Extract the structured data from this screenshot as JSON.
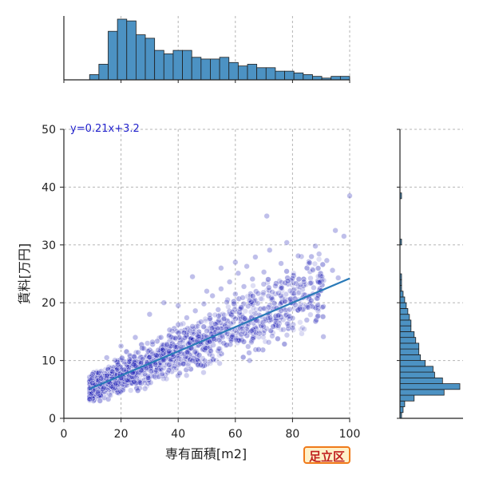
{
  "chart_data": {
    "type": "scatter",
    "title": "",
    "xlabel": "専有面積[m2]",
    "ylabel": "賃料[万円]",
    "xlim": [
      0,
      100
    ],
    "ylim": [
      0,
      50
    ],
    "xticks": [
      0,
      20,
      40,
      60,
      80,
      100
    ],
    "yticks": [
      0,
      10,
      20,
      30,
      40,
      50
    ],
    "grid": true,
    "grid_style": "dashed",
    "point_color": "#1a1ab4",
    "line_color": "#2a7ab8",
    "hist_color": "#4c92c3",
    "regression": {
      "label": "y=0.21x+3.2",
      "slope": 0.21,
      "intercept": 3.2,
      "x_range": [
        9,
        100
      ]
    },
    "scatter_points": [
      [
        9,
        5.2
      ],
      [
        10,
        6.1
      ],
      [
        11,
        5.8
      ],
      [
        12,
        4.6
      ],
      [
        13,
        6.9
      ],
      [
        14,
        5.3
      ],
      [
        15,
        7.4
      ],
      [
        16,
        6.2
      ],
      [
        17,
        8.1
      ],
      [
        18,
        5.9
      ],
      [
        19,
        9.3
      ],
      [
        20,
        7.0
      ],
      [
        21,
        8.4
      ],
      [
        22,
        6.6
      ],
      [
        23,
        10.2
      ],
      [
        24,
        7.9
      ],
      [
        25,
        9.1
      ],
      [
        26,
        11.4
      ],
      [
        27,
        8.3
      ],
      [
        28,
        12.1
      ],
      [
        29,
        9.7
      ],
      [
        30,
        10.6
      ],
      [
        31,
        13.2
      ],
      [
        32,
        9.4
      ],
      [
        33,
        11.8
      ],
      [
        34,
        14.0
      ],
      [
        35,
        10.1
      ],
      [
        36,
        12.7
      ],
      [
        37,
        15.3
      ],
      [
        38,
        11.0
      ],
      [
        39,
        13.9
      ],
      [
        40,
        16.2
      ],
      [
        41,
        12.3
      ],
      [
        42,
        14.8
      ],
      [
        43,
        17.4
      ],
      [
        44,
        13.1
      ],
      [
        45,
        15.9
      ],
      [
        46,
        18.6
      ],
      [
        47,
        14.2
      ],
      [
        48,
        16.7
      ],
      [
        49,
        19.8
      ],
      [
        50,
        15.1
      ],
      [
        51,
        17.9
      ],
      [
        52,
        21.2
      ],
      [
        53,
        16.3
      ],
      [
        54,
        18.8
      ],
      [
        55,
        22.4
      ],
      [
        56,
        17.2
      ],
      [
        57,
        20.1
      ],
      [
        58,
        23.6
      ],
      [
        59,
        18.4
      ],
      [
        60,
        21.5
      ],
      [
        61,
        25.1
      ],
      [
        62,
        19.2
      ],
      [
        63,
        22.8
      ],
      [
        64,
        26.3
      ],
      [
        65,
        20.4
      ],
      [
        66,
        24.1
      ],
      [
        67,
        27.9
      ],
      [
        68,
        21.6
      ],
      [
        70,
        25.3
      ],
      [
        72,
        29.1
      ],
      [
        74,
        22.9
      ],
      [
        76,
        26.8
      ],
      [
        78,
        30.4
      ],
      [
        80,
        24.2
      ],
      [
        82,
        28.1
      ],
      [
        84,
        23.6
      ],
      [
        86,
        26.9
      ],
      [
        88,
        29.8
      ],
      [
        90,
        22.1
      ],
      [
        92,
        27.3
      ],
      [
        94,
        25.6
      ],
      [
        96,
        24.3
      ],
      [
        98,
        31.5
      ],
      [
        100,
        38.5
      ],
      [
        71,
        35.0
      ],
      [
        95,
        32.5
      ],
      [
        60,
        27.0
      ],
      [
        45,
        24.5
      ],
      [
        30,
        18.0
      ],
      [
        25,
        14.0
      ],
      [
        35,
        20.0
      ],
      [
        50,
        22.0
      ],
      [
        15,
        10.5
      ],
      [
        20,
        12.5
      ],
      [
        40,
        19.5
      ],
      [
        55,
        26.0
      ],
      [
        65,
        10.0
      ],
      [
        85,
        17.0
      ]
    ],
    "x_hist_counts": [
      3,
      9,
      28,
      35,
      34,
      26,
      24,
      17,
      15,
      17,
      17,
      13,
      12,
      12,
      13,
      10,
      8,
      9,
      7,
      7,
      5,
      5,
      4,
      3,
      2,
      1,
      2,
      2
    ],
    "y_hist_counts": [
      1,
      2,
      3,
      9,
      28,
      38,
      27,
      22,
      21,
      16,
      13,
      12,
      12,
      10,
      9,
      7,
      7,
      6,
      5,
      4,
      3,
      2,
      1,
      1,
      1,
      0,
      0,
      0,
      0,
      0,
      1,
      0,
      0,
      0,
      0,
      0,
      0,
      0,
      1,
      0,
      0,
      0,
      0,
      0,
      0,
      0,
      0,
      0,
      0,
      0
    ]
  },
  "badge": {
    "label": "足立区"
  }
}
